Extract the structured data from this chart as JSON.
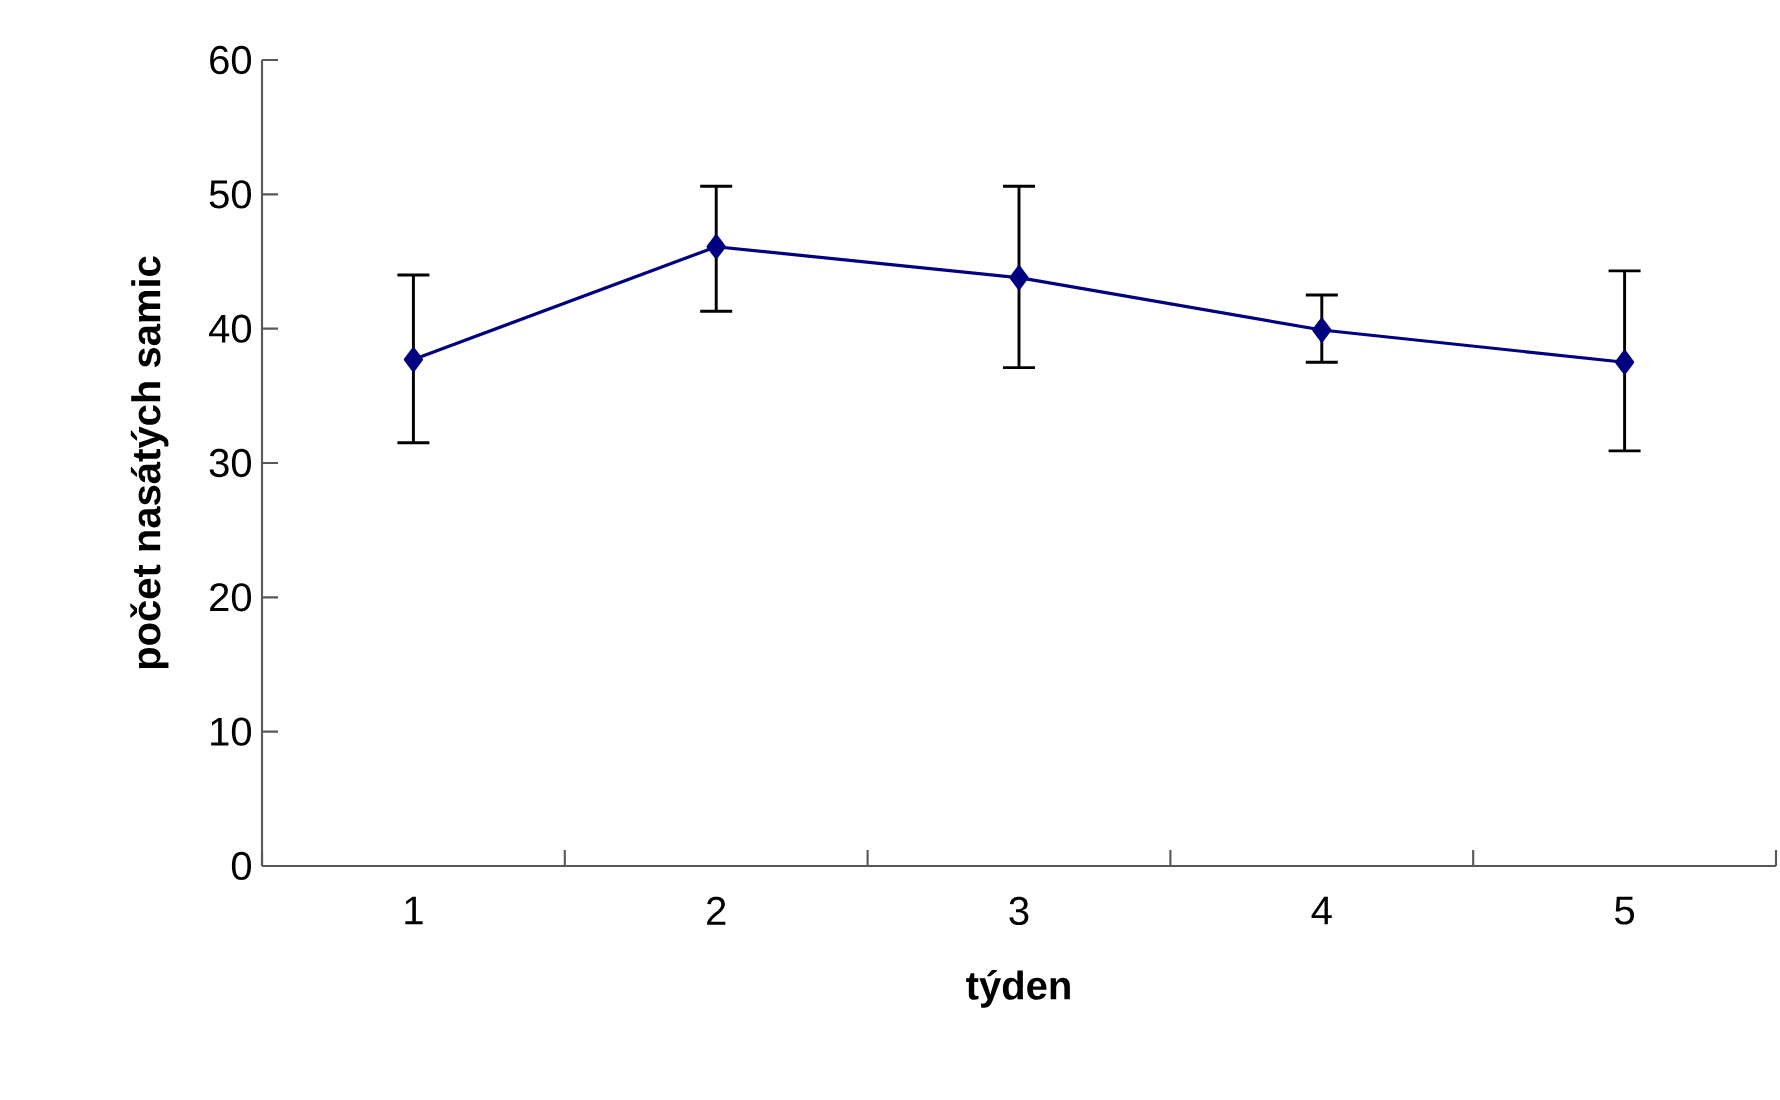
{
  "chart_data": {
    "type": "line",
    "xlabel": "týden",
    "ylabel": "počet nasátých samic",
    "categories": [
      "1",
      "2",
      "3",
      "4",
      "5"
    ],
    "series": [
      {
        "color": "#000080",
        "values": [
          37.7,
          46.1,
          43.8,
          39.9,
          37.5
        ],
        "errors": [
          [
            31.5,
            44.0
          ],
          [
            41.3,
            50.6
          ],
          [
            37.1,
            50.6
          ],
          [
            37.5,
            42.5
          ],
          [
            30.9,
            44.3
          ]
        ]
      }
    ],
    "ylim": [
      0,
      60
    ],
    "yticks": [
      0,
      10,
      20,
      30,
      40,
      50,
      60
    ],
    "marker": "diamond",
    "line_style": "solid"
  }
}
